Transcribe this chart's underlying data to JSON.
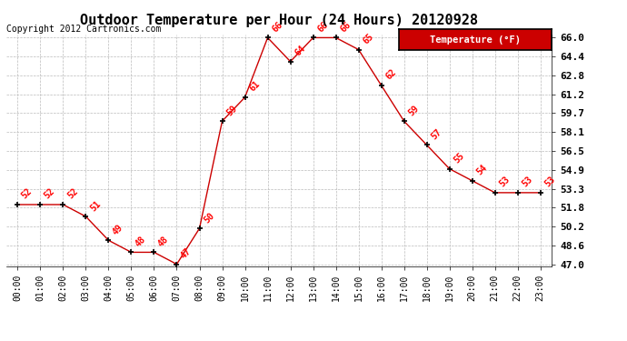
{
  "title": "Outdoor Temperature per Hour (24 Hours) 20120928",
  "copyright": "Copyright 2012 Cartronics.com",
  "legend_label": "Temperature (°F)",
  "hours": [
    0,
    1,
    2,
    3,
    4,
    5,
    6,
    7,
    8,
    9,
    10,
    11,
    12,
    13,
    14,
    15,
    16,
    17,
    18,
    19,
    20,
    21,
    22,
    23
  ],
  "hour_labels": [
    "00:00",
    "01:00",
    "02:00",
    "03:00",
    "04:00",
    "05:00",
    "06:00",
    "07:00",
    "08:00",
    "09:00",
    "10:00",
    "11:00",
    "12:00",
    "13:00",
    "14:00",
    "15:00",
    "16:00",
    "17:00",
    "18:00",
    "19:00",
    "20:00",
    "21:00",
    "22:00",
    "23:00"
  ],
  "temps": [
    52,
    52,
    52,
    51,
    49,
    48,
    48,
    47,
    50,
    59,
    61,
    66,
    64,
    66,
    66,
    65,
    62,
    59,
    57,
    55,
    54,
    53,
    53,
    53
  ],
  "ylim_min": 47.0,
  "ylim_max": 66.0,
  "yticks": [
    47.0,
    48.6,
    50.2,
    51.8,
    53.3,
    54.9,
    56.5,
    58.1,
    59.7,
    61.2,
    62.8,
    64.4,
    66.0
  ],
  "line_color": "#cc0000",
  "marker_color": "black",
  "label_color": "red",
  "bg_color": "white",
  "grid_color": "#bbbbbb",
  "title_fontsize": 11,
  "copyright_fontsize": 7,
  "annotation_fontsize": 7,
  "tick_fontsize": 7,
  "ytick_fontsize": 8,
  "legend_bg": "#cc0000",
  "legend_text_color": "white",
  "legend_border_color": "black",
  "figure_width": 6.9,
  "figure_height": 3.75,
  "dpi": 100
}
